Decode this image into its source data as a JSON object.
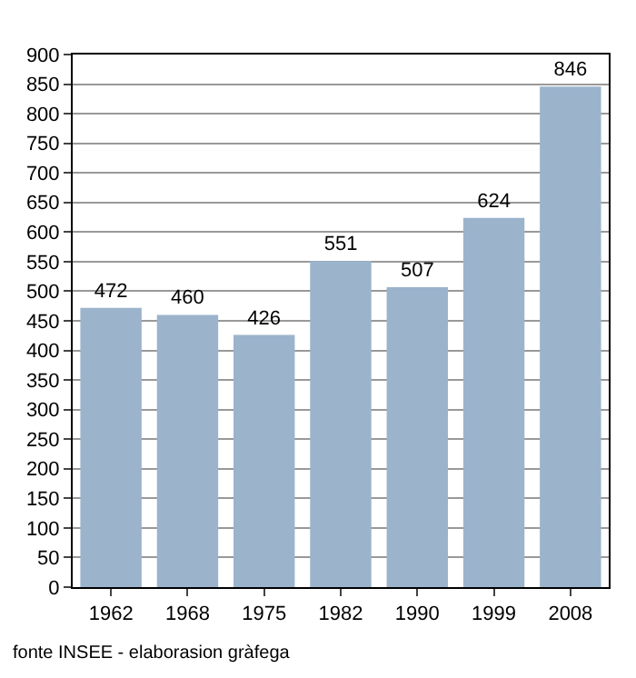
{
  "chart_data": {
    "type": "bar",
    "categories": [
      "1962",
      "1968",
      "1975",
      "1982",
      "1990",
      "1999",
      "2008"
    ],
    "values": [
      472,
      460,
      426,
      551,
      507,
      624,
      846
    ],
    "color": "#9bb4cc",
    "ylim": [
      0,
      900
    ],
    "yticks": [
      0,
      50,
      100,
      150,
      200,
      250,
      300,
      350,
      400,
      450,
      500,
      550,
      600,
      650,
      700,
      750,
      800,
      850,
      900
    ],
    "grid": "y",
    "data_labels": true,
    "legend": false,
    "annotations": [
      "fonte INSEE - elaborasion gràfega"
    ]
  }
}
